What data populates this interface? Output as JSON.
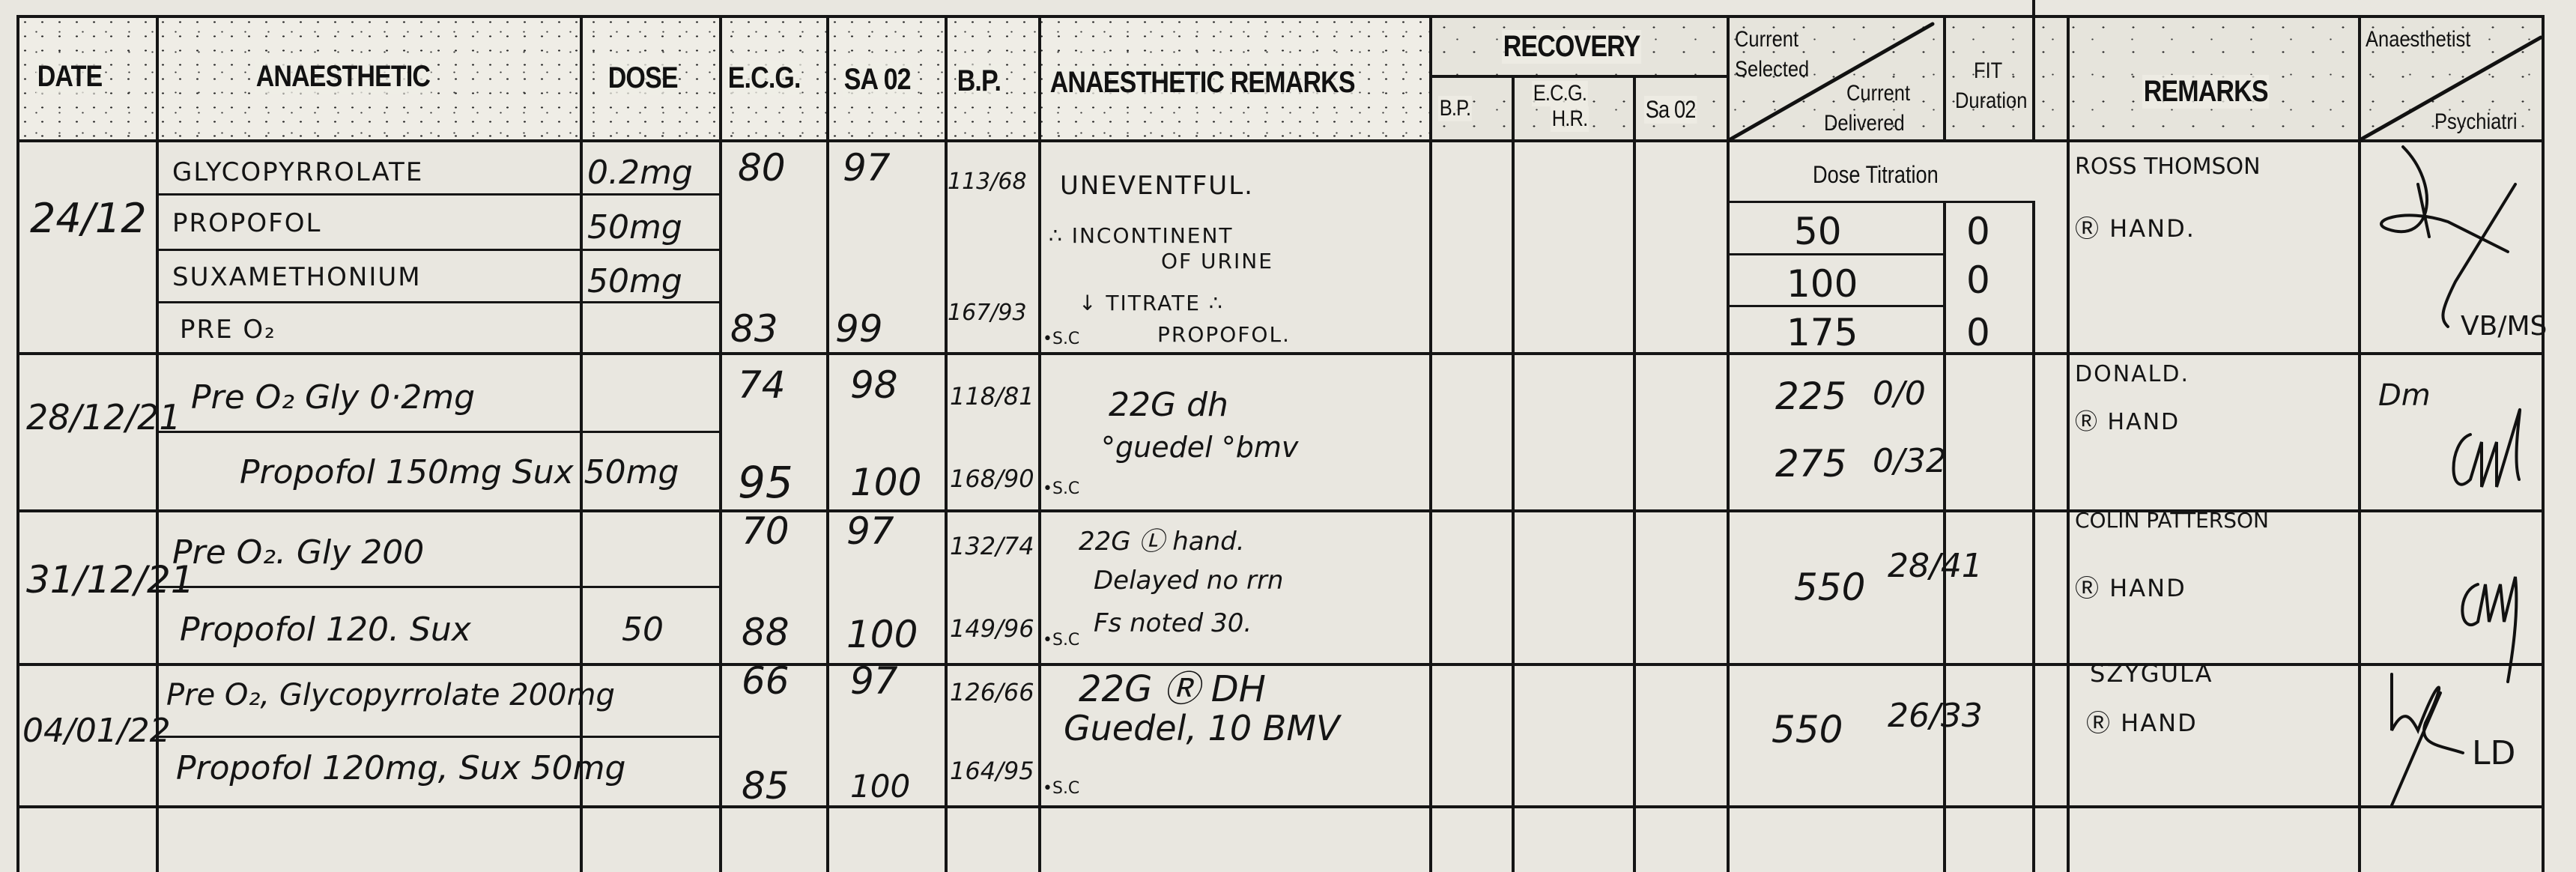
{
  "header": {
    "date": "DATE",
    "anaesthetic": "ANAESTHETIC",
    "dose": "DOSE",
    "ecg": "E.C.G.",
    "sa02": "SA 02",
    "bp": "B.P.",
    "anaesthetic_remarks": "ANAESTHETIC REMARKS",
    "recovery": "RECOVERY",
    "recovery_bp": "B.P.",
    "recovery_ecg_hr_1": "E.C.G.",
    "recovery_ecg_hr_2": "H.R.",
    "recovery_sa02": "Sa 02",
    "current_selected_1": "Current",
    "current_selected_2": "Selected",
    "current_delivered_1": "Current",
    "current_delivered_2": "Delivered",
    "fit": "FIT",
    "duration": "Duration",
    "remarks": "REMARKS",
    "anaesthetist": "Anaesthetist",
    "psychiatrist": "Psychiatri"
  },
  "dose_titration_label": "Dose Titration",
  "records": [
    {
      "date": "24/12",
      "drugs": [
        {
          "name": "GLYCOPYRROLATE",
          "dose": "0.2mg"
        },
        {
          "name": "PROPOFOL",
          "dose": "50mg"
        },
        {
          "name": "SUXAMETHONIUM",
          "dose": "50mg"
        },
        {
          "name": "PRE O₂",
          "dose": ""
        }
      ],
      "ecg": [
        "80",
        "83"
      ],
      "sa02": [
        "97",
        "99"
      ],
      "bp": [
        "113/68",
        "167/93"
      ],
      "bp_note": "•S.C",
      "remarks": [
        "UNEVENTFUL.",
        "∴ INCONTINENT",
        "OF URINE",
        "↓ TITRATE ∴",
        "PROPOFOL."
      ],
      "titration": [
        {
          "current": "50",
          "fit": "0"
        },
        {
          "current": "100",
          "fit": "0"
        },
        {
          "current": "175",
          "fit": "0"
        }
      ],
      "staff_remarks": [
        "ROSS THOMSON",
        "Ⓡ HAND."
      ],
      "anaesthetist_initials": "VB/MS"
    },
    {
      "date": "28/12/21",
      "drugs": [
        {
          "name": "Pre O₂      Gly 0·2mg",
          "dose": ""
        },
        {
          "name": "Propofol 150mg  Sux 50mg",
          "dose": ""
        }
      ],
      "ecg": [
        "74",
        "95"
      ],
      "sa02": [
        "98",
        "100"
      ],
      "bp": [
        "118/81",
        "168/90"
      ],
      "bp_note": "•S.C",
      "remarks": [
        "22G dh",
        "°guedel °bmv"
      ],
      "titration": [
        {
          "current": "225",
          "fit": "0/0"
        },
        {
          "current": "275",
          "fit": "0/32"
        }
      ],
      "staff_remarks": [
        "DONALD.",
        "Ⓡ HAND"
      ],
      "anaesthetist_initials": "Dm"
    },
    {
      "date": "31/12/21",
      "drugs": [
        {
          "name": "Pre O₂.  Gly 200",
          "dose": ""
        },
        {
          "name": "Propofol 120.   Sux",
          "dose": "50"
        }
      ],
      "ecg": [
        "70",
        "88"
      ],
      "sa02": [
        "97",
        "100"
      ],
      "bp": [
        "132/74",
        "149/96"
      ],
      "bp_note": "•S.C",
      "remarks": [
        "22G Ⓛ hand.",
        "Delayed no rrn",
        "Fs noted  30."
      ],
      "titration": [
        {
          "current": "550",
          "fit": "28/41"
        }
      ],
      "staff_remarks": [
        "COLIN PATTERSON",
        "Ⓡ HAND"
      ],
      "anaesthetist_initials": ""
    },
    {
      "date": "04/01/22",
      "drugs": [
        {
          "name": "Pre O₂, Glycopyrrolate 200mg",
          "dose": ""
        },
        {
          "name": "Propofol 120mg, Sux 50mg",
          "dose": ""
        }
      ],
      "ecg": [
        "66",
        "85"
      ],
      "sa02": [
        "97",
        "100"
      ],
      "bp": [
        "126/66",
        "164/95"
      ],
      "bp_note": "•S.C",
      "remarks": [
        "22G Ⓡ DH",
        "Guedel, 10 BMV"
      ],
      "titration": [
        {
          "current": "550",
          "fit": "26/33"
        }
      ],
      "staff_remarks": [
        "SZYGULA",
        "Ⓡ HAND"
      ],
      "anaesthetist_initials": "LD"
    }
  ]
}
